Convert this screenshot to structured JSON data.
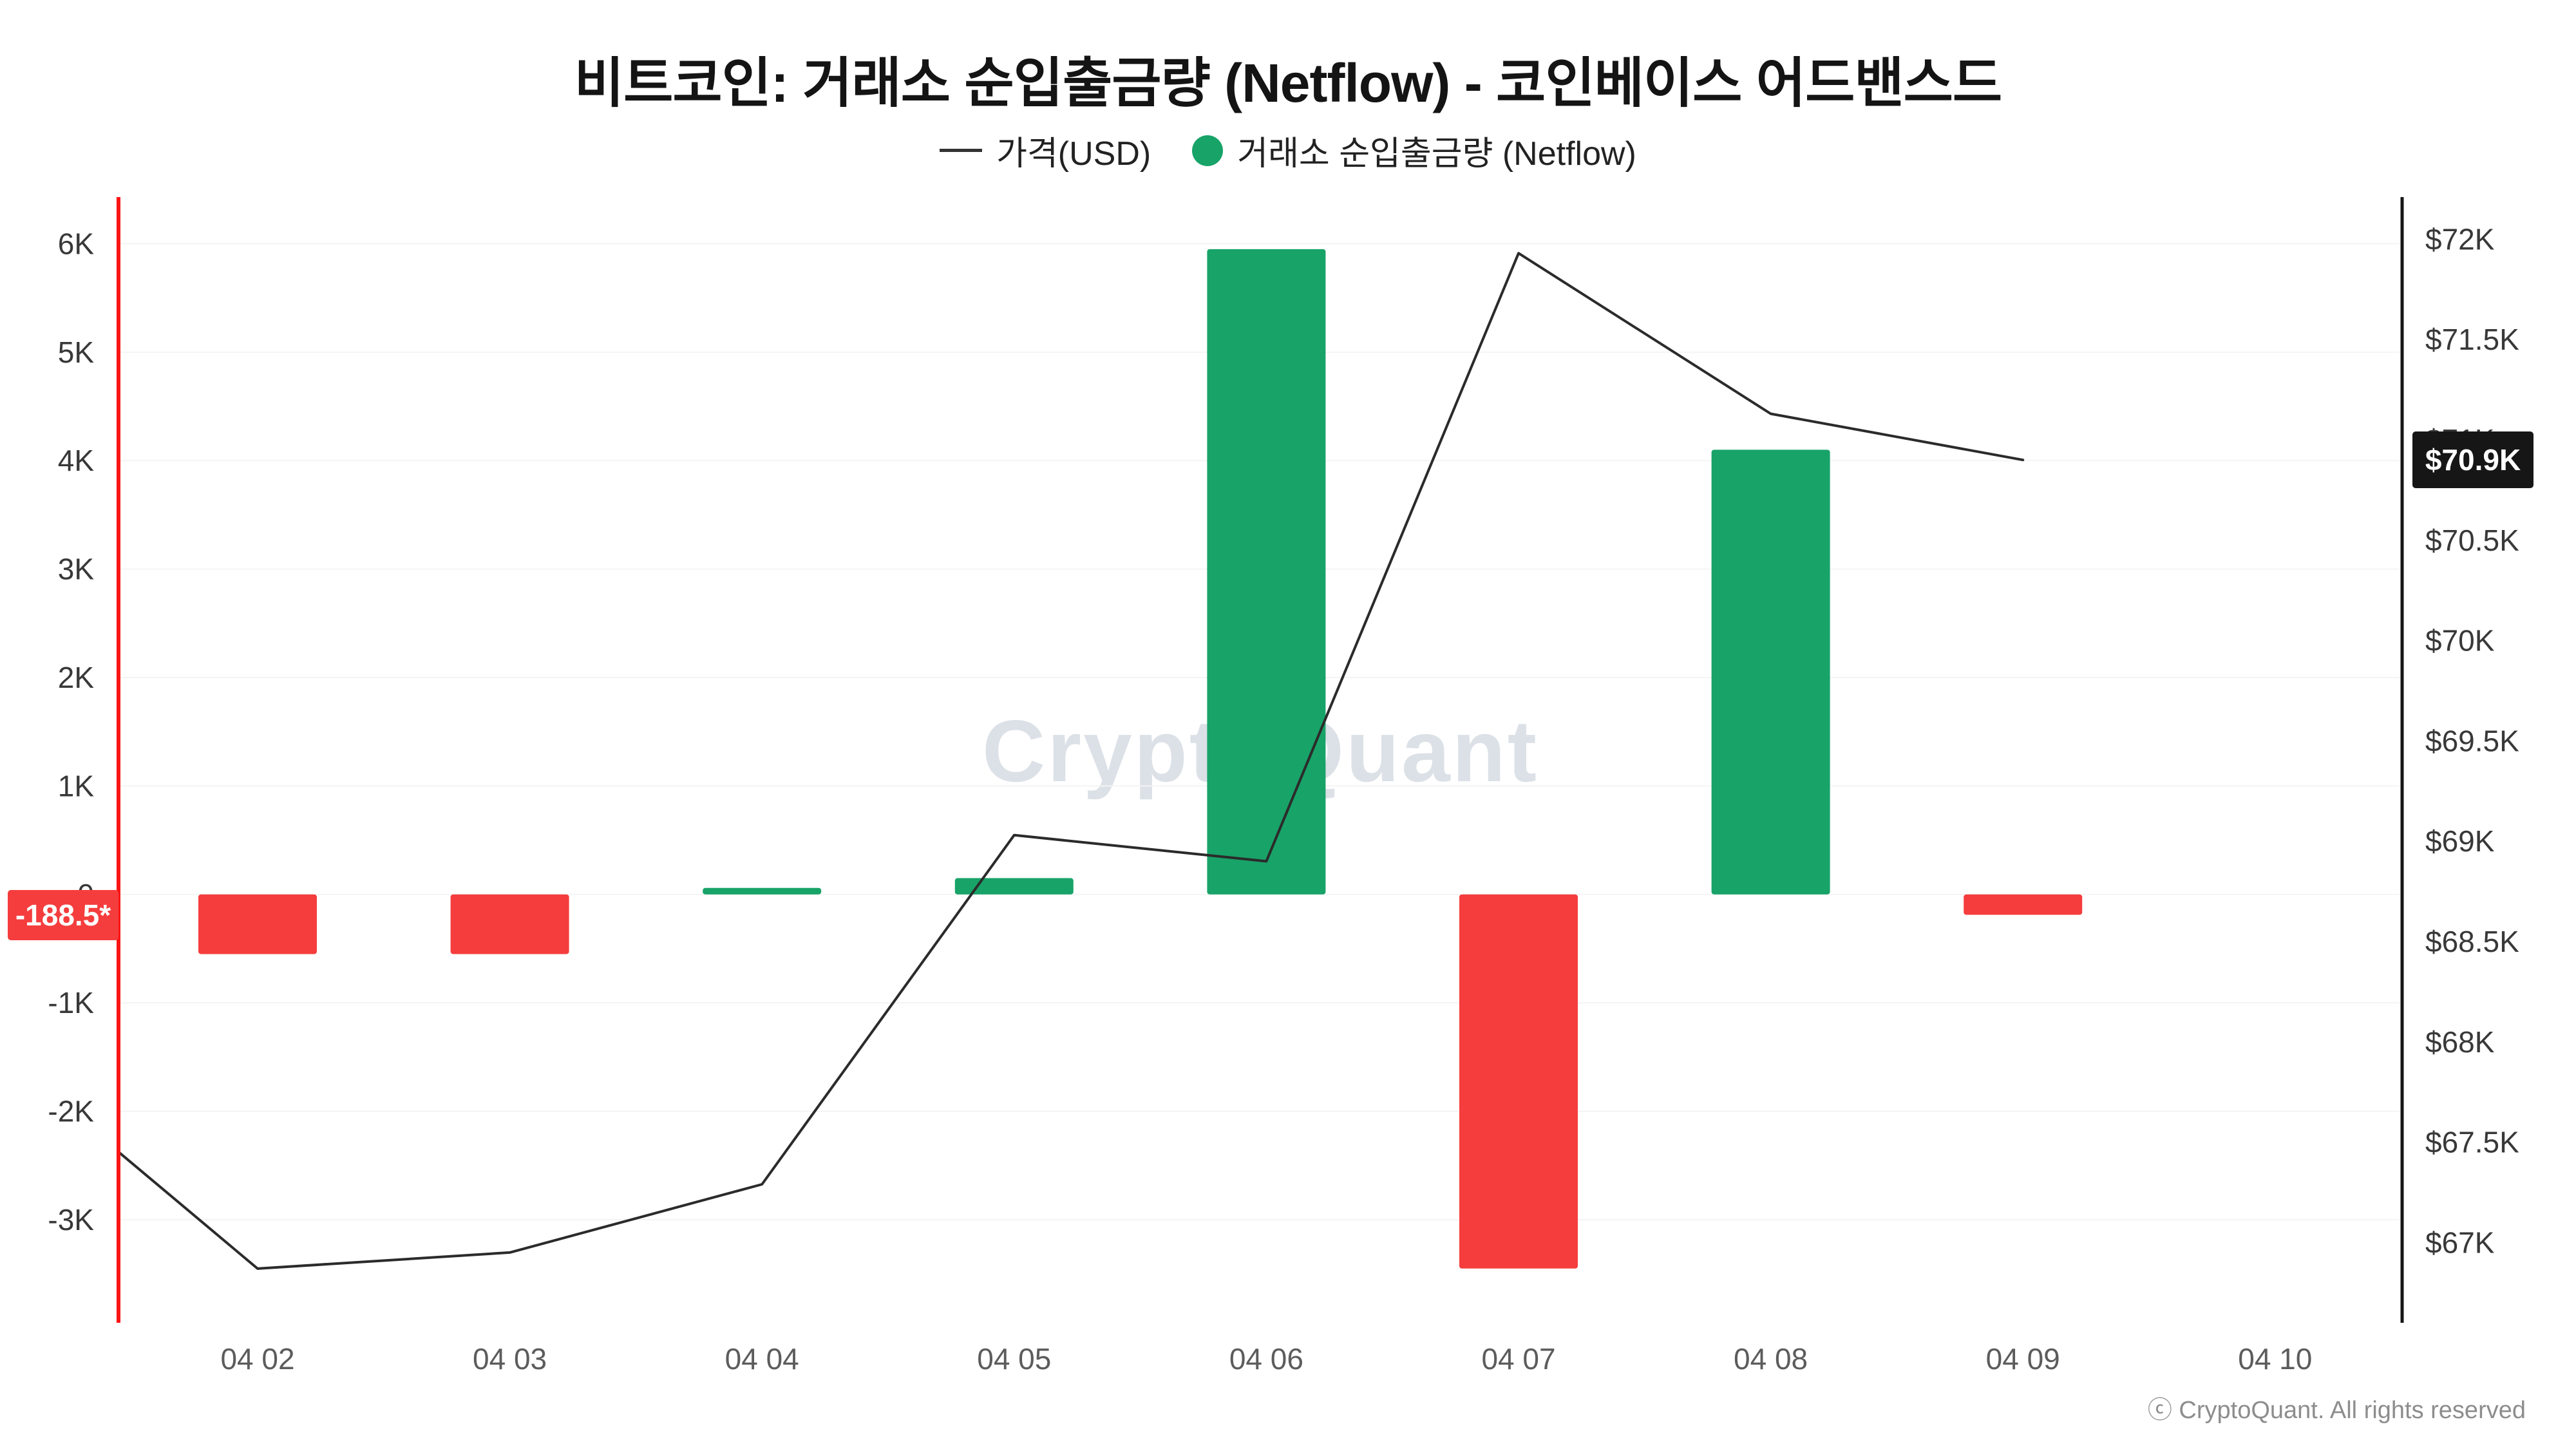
{
  "title": "비트코인: 거래소 순입출금량 (Netflow) - 코인베이스 어드밴스드",
  "legend": {
    "price_label": "가격(USD)",
    "netflow_label": "거래소 순입출금량 (Netflow)"
  },
  "watermark": "CryptoQuant",
  "footer": {
    "copyright": "ⓒ CryptoQuant. All rights reserved"
  },
  "badges": {
    "netflow_last": {
      "text": "-188.5*",
      "value": -188.5,
      "bg": "#f53d3d",
      "fg": "#ffffff"
    },
    "price_last": {
      "text": "$70.9K",
      "value": 70900,
      "bg": "#161616",
      "fg": "#ffffff"
    }
  },
  "colors": {
    "bar_positive": "#18a368",
    "bar_negative": "#f53d3d",
    "price_line": "#2b2b2b",
    "left_axis_line": "#fa1414",
    "right_axis_line": "#161616",
    "grid": "#f4f4f4",
    "tick_text": "#383838",
    "x_tick_text": "#5c5c5c"
  },
  "chart_data": {
    "type": "bar",
    "subtype": "bar+line combo, dual y-axes",
    "title": "비트코인: 거래소 순입출금량 (Netflow) - 코인베이스 어드밴스드",
    "legend_position": "top",
    "grid": true,
    "categories": [
      "04 02",
      "04 03",
      "04 04",
      "04 05",
      "04 06",
      "04 07",
      "04 08",
      "04 09",
      "04 10"
    ],
    "series": [
      {
        "name": "거래소 순입출금량 (Netflow)",
        "type": "bar",
        "axis": "left",
        "values": [
          -550,
          -550,
          60,
          150,
          5950,
          -3450,
          4100,
          -188.5,
          null
        ]
      },
      {
        "name": "가격(USD)",
        "type": "line",
        "axis": "right",
        "x": [
          -0.55,
          0,
          1,
          2,
          3,
          4,
          5,
          6,
          7
        ],
        "values": [
          67450,
          66870,
          66950,
          67290,
          69030,
          68900,
          71930,
          71130,
          70900
        ]
      }
    ],
    "left_axis": {
      "min": -3950,
      "max": 6430,
      "ticks": [
        {
          "value": 6000,
          "label": "6K"
        },
        {
          "value": 5000,
          "label": "5K"
        },
        {
          "value": 4000,
          "label": "4K"
        },
        {
          "value": 3000,
          "label": "3K"
        },
        {
          "value": 2000,
          "label": "2K"
        },
        {
          "value": 1000,
          "label": "1K"
        },
        {
          "value": 0,
          "label": "0"
        },
        {
          "value": -1000,
          "label": "-1K"
        },
        {
          "value": -2000,
          "label": "-2K"
        },
        {
          "value": -3000,
          "label": "-3K"
        }
      ]
    },
    "right_axis": {
      "min": 66600,
      "max": 72210,
      "ticks": [
        {
          "value": 72000,
          "label": "$72K"
        },
        {
          "value": 71500,
          "label": "$71.5K"
        },
        {
          "value": 71000,
          "label": "$71K"
        },
        {
          "value": 70500,
          "label": "$70.5K"
        },
        {
          "value": 70000,
          "label": "$70K"
        },
        {
          "value": 69500,
          "label": "$69.5K"
        },
        {
          "value": 69000,
          "label": "$69K"
        },
        {
          "value": 68500,
          "label": "$68.5K"
        },
        {
          "value": 68000,
          "label": "$68K"
        },
        {
          "value": 67500,
          "label": "$67.5K"
        },
        {
          "value": 67000,
          "label": "$67K"
        }
      ]
    }
  }
}
